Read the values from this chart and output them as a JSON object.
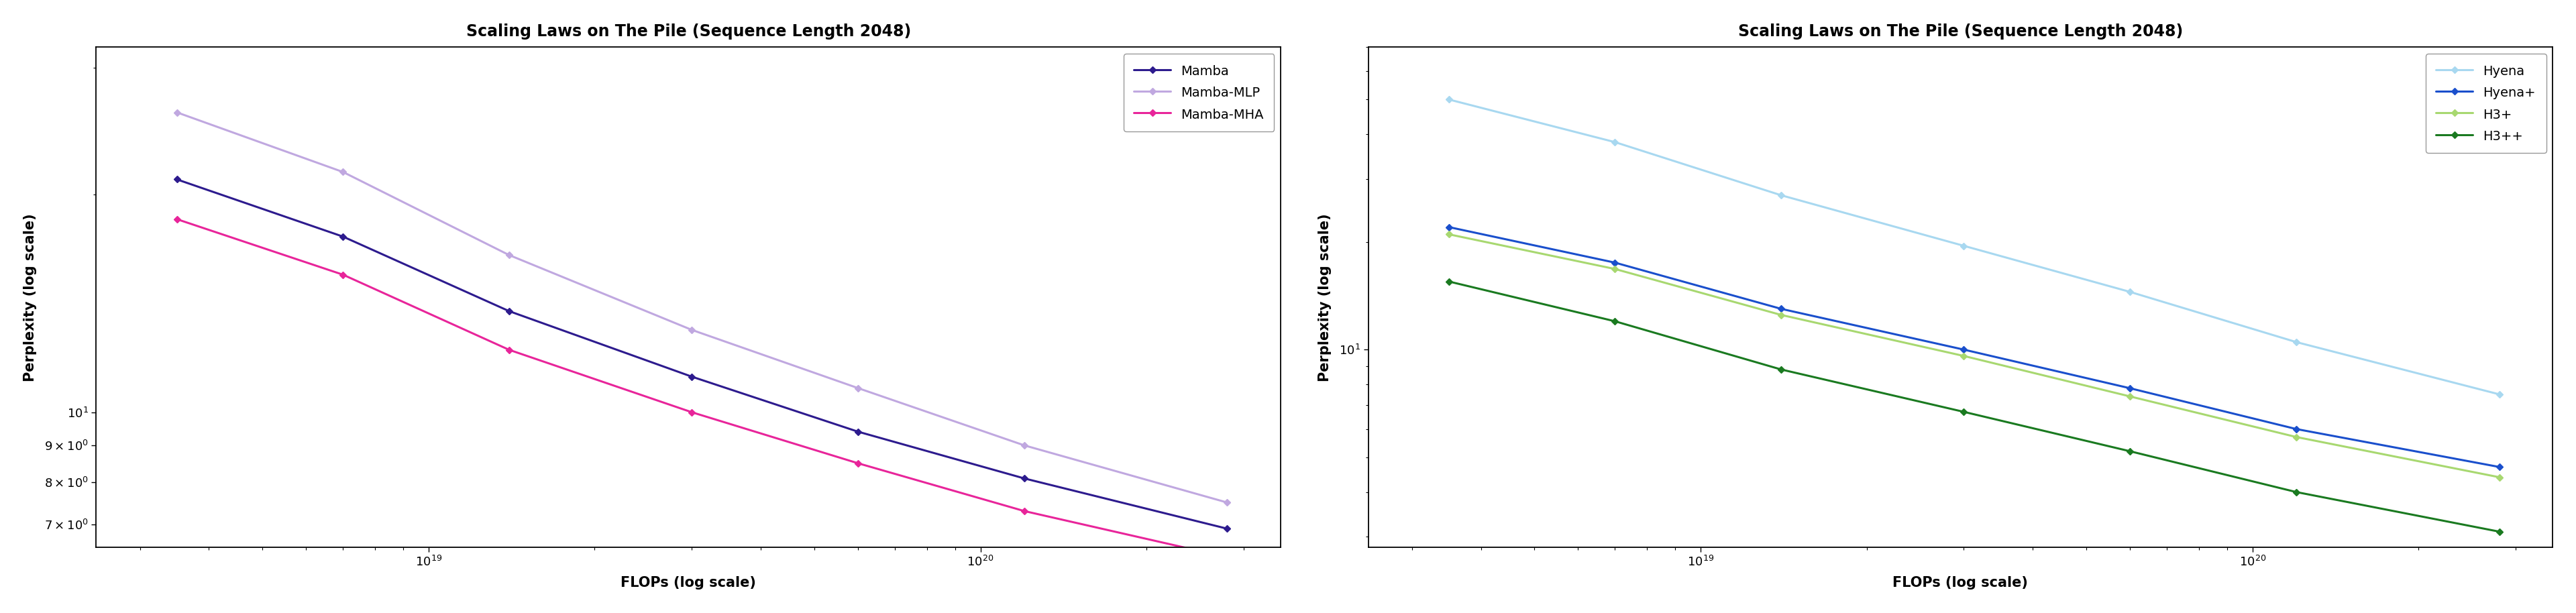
{
  "title": "Scaling Laws on The Pile (Sequence Length 2048)",
  "xlabel": "FLOPs (log scale)",
  "ylabel": "Perplexity (log scale)",
  "left": {
    "series": [
      {
        "label": "Mamba",
        "color": "#2d1b8e",
        "x": [
          3.5e+18,
          7e+18,
          1.4e+19,
          3e+19,
          6e+19,
          1.2e+20,
          2.8e+20
        ],
        "y": [
          21.0,
          17.5,
          13.8,
          11.2,
          9.4,
          8.1,
          6.9
        ]
      },
      {
        "label": "Mamba-MLP",
        "color": "#c0a8e0",
        "x": [
          3.5e+18,
          7e+18,
          1.4e+19,
          3e+19,
          6e+19,
          1.2e+20,
          2.8e+20
        ],
        "y": [
          26.0,
          21.5,
          16.5,
          13.0,
          10.8,
          9.0,
          7.5
        ]
      },
      {
        "label": "Mamba-MHA",
        "color": "#e8259a",
        "x": [
          3.5e+18,
          7e+18,
          1.4e+19,
          3e+19,
          6e+19,
          1.2e+20,
          2.8e+20
        ],
        "y": [
          18.5,
          15.5,
          12.2,
          10.0,
          8.5,
          7.3,
          6.3
        ]
      }
    ],
    "xlim": [
      2.5e+18,
      3.5e+20
    ],
    "ylim": [
      6.5,
      32
    ],
    "yticks": [
      7,
      8,
      9,
      10
    ],
    "ytick_labels": [
      "7×10⁰",
      "8×10⁰",
      "9×10⁰",
      "10¹"
    ]
  },
  "right": {
    "series": [
      {
        "label": "Hyena",
        "color": "#a8d8f0",
        "x": [
          3.5e+18,
          7e+18,
          1.4e+19,
          3e+19,
          6e+19,
          1.2e+20,
          2.8e+20
        ],
        "y": [
          50.0,
          38.0,
          27.0,
          19.5,
          14.5,
          10.5,
          7.5
        ]
      },
      {
        "label": "Hyena+",
        "color": "#1a4fcc",
        "x": [
          3.5e+18,
          7e+18,
          1.4e+19,
          3e+19,
          6e+19,
          1.2e+20,
          2.8e+20
        ],
        "y": [
          22.0,
          17.5,
          13.0,
          10.0,
          7.8,
          6.0,
          4.7
        ]
      },
      {
        "label": "H3+",
        "color": "#a8d870",
        "x": [
          3.5e+18,
          7e+18,
          1.4e+19,
          3e+19,
          6e+19,
          1.2e+20,
          2.8e+20
        ],
        "y": [
          21.0,
          16.8,
          12.5,
          9.6,
          7.4,
          5.7,
          4.4
        ]
      },
      {
        "label": "H3++",
        "color": "#1a7a20",
        "x": [
          3.5e+18,
          7e+18,
          1.4e+19,
          3e+19,
          6e+19,
          1.2e+20,
          2.8e+20
        ],
        "y": [
          15.5,
          12.0,
          8.8,
          6.7,
          5.2,
          4.0,
          3.1
        ]
      }
    ],
    "xlim": [
      2.5e+18,
      3.5e+20
    ],
    "ylim": [
      2.8,
      70
    ]
  },
  "title_fontsize": 17,
  "label_fontsize": 15,
  "tick_fontsize": 13,
  "legend_fontsize": 14,
  "linewidth": 2.2,
  "marker": "D",
  "markersize": 5.5
}
